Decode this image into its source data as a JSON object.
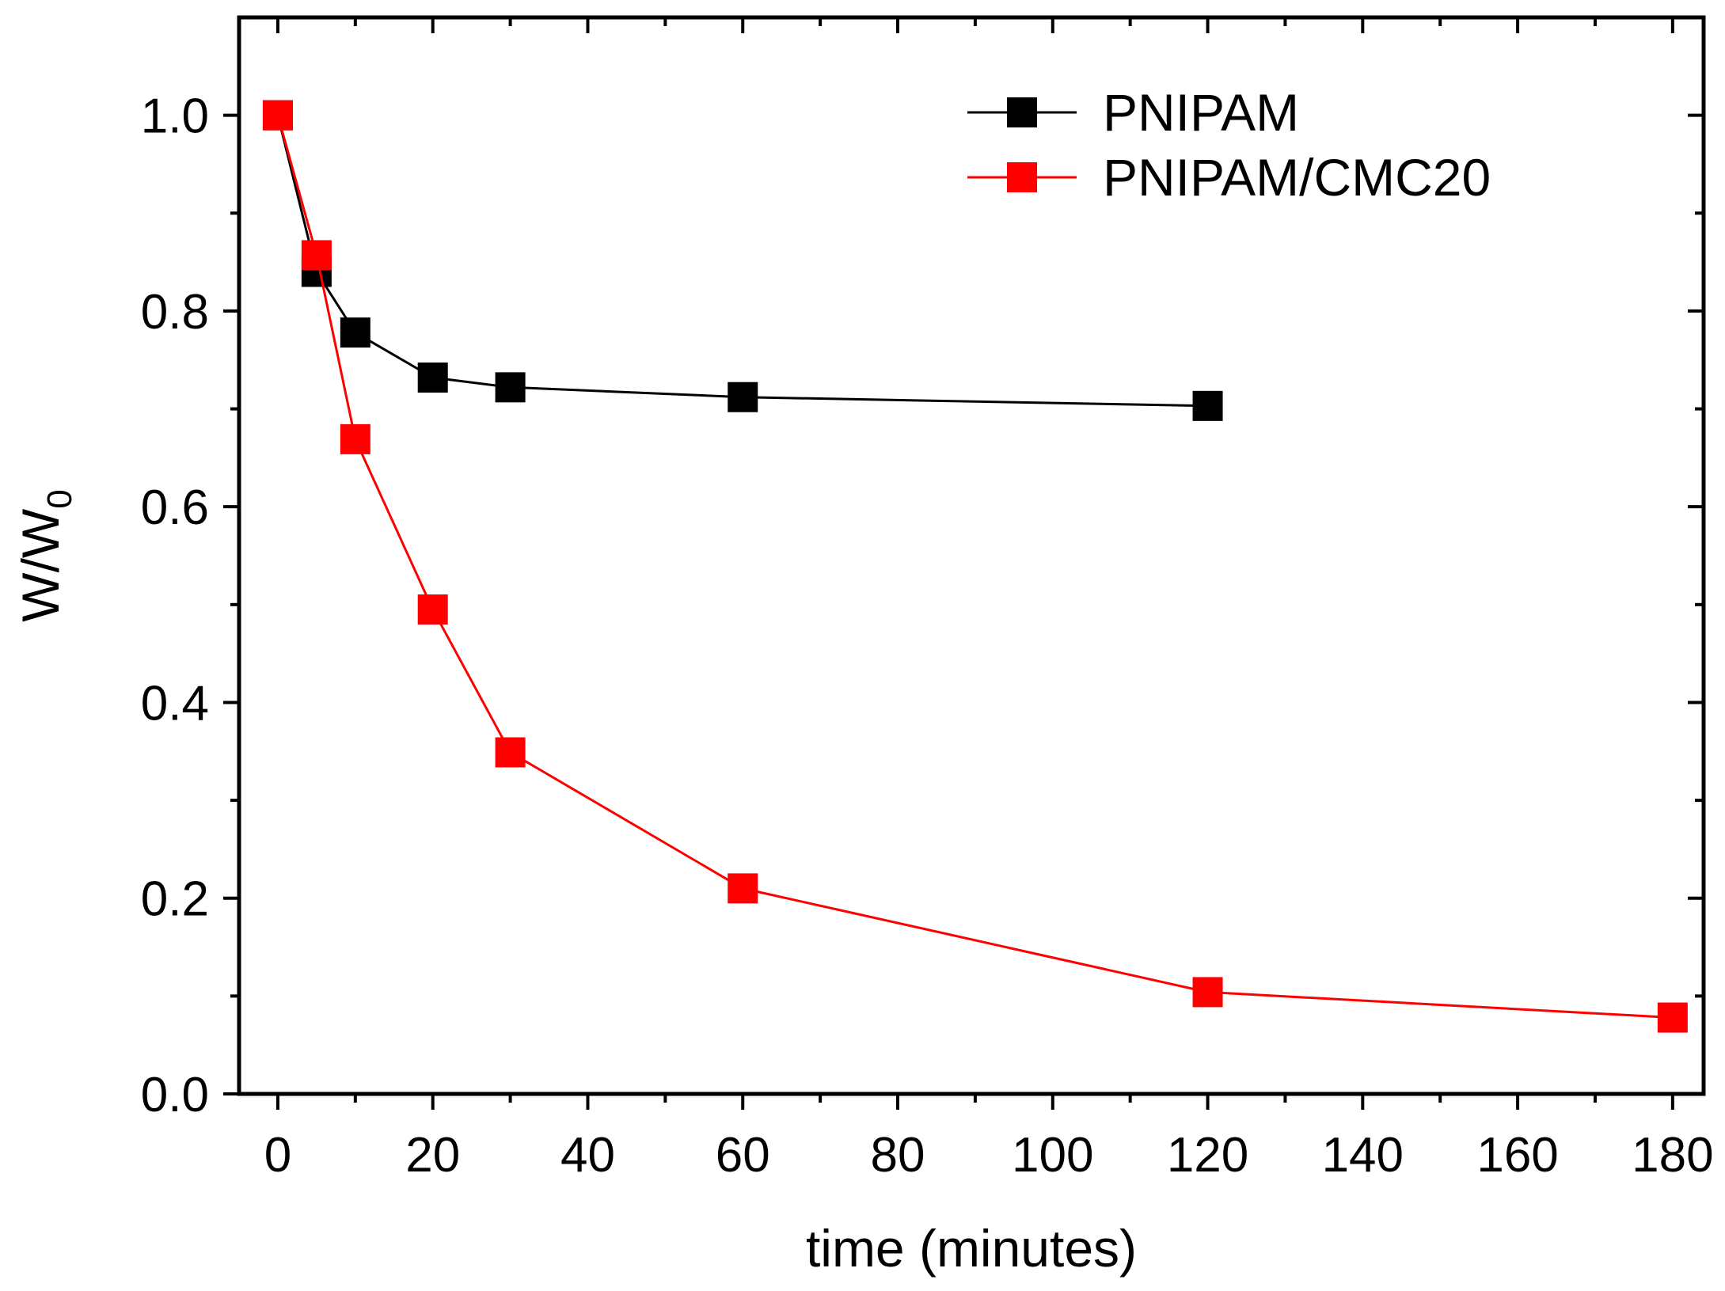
{
  "chart_data": {
    "type": "line",
    "xlabel": "time (minutes)",
    "ylabel": {
      "main": "W/W",
      "subscript": "0"
    },
    "xlim": [
      -5,
      184
    ],
    "ylim": [
      0,
      1.1
    ],
    "xticks": [
      0,
      20,
      40,
      60,
      80,
      100,
      120,
      140,
      160,
      180
    ],
    "xtick_labels": [
      "0",
      "20",
      "40",
      "60",
      "80",
      "100",
      "120",
      "140",
      "160",
      "180"
    ],
    "yticks": [
      0.0,
      0.2,
      0.4,
      0.6,
      0.8,
      1.0
    ],
    "ytick_labels": [
      "0.0",
      "0.2",
      "0.4",
      "0.6",
      "0.8",
      "1.0"
    ],
    "legend_position": "top-right",
    "series": [
      {
        "name": "PNIPAM",
        "color": "#000000",
        "marker": "square",
        "x": [
          0,
          5,
          10,
          20,
          30,
          60,
          120
        ],
        "y": [
          1.0,
          0.84,
          0.778,
          0.732,
          0.722,
          0.712,
          0.703
        ]
      },
      {
        "name": "PNIPAM/CMC20",
        "color": "#ff0000",
        "marker": "square",
        "x": [
          0,
          5,
          10,
          20,
          30,
          60,
          120,
          180
        ],
        "y": [
          1.0,
          0.857,
          0.669,
          0.495,
          0.349,
          0.21,
          0.104,
          0.078
        ]
      }
    ]
  }
}
